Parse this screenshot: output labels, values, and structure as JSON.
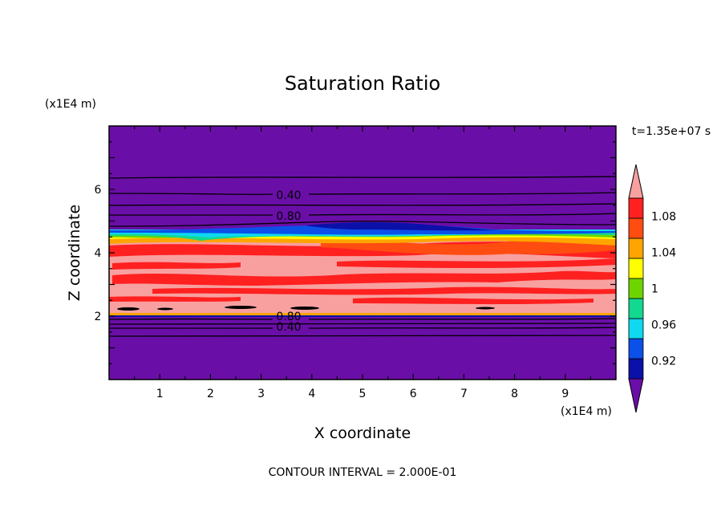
{
  "chart_data": {
    "type": "heatmap",
    "title": "Saturation Ratio",
    "xlabel": "X coordinate",
    "ylabel": "Z coordinate",
    "x_units": "(x1E4 m)",
    "y_units": "(x1E4 m)",
    "time_label": "t=1.35e+07 s",
    "footer": "CONTOUR INTERVAL = 2.000E-01",
    "xlim": [
      0,
      10
    ],
    "ylim": [
      0,
      8
    ],
    "x_ticks": [
      "1",
      "2",
      "3",
      "4",
      "5",
      "6",
      "7",
      "8",
      "9"
    ],
    "y_ticks": [
      "2",
      "4",
      "6"
    ],
    "colorbar": {
      "levels": [
        0.9,
        0.92,
        0.94,
        0.96,
        0.98,
        1.0,
        1.02,
        1.04,
        1.06,
        1.08,
        1.1
      ],
      "colors": [
        "#6a0ea8",
        "#0b10a8",
        "#0b50e8",
        "#10d8f0",
        "#12d890",
        "#6ed400",
        "#ffff00",
        "#ffa400",
        "#ff4c10",
        "#ff2020",
        "#f8a0a0"
      ],
      "tick_labels": [
        "0.92",
        "0.96",
        "1",
        "1.04",
        "1.08"
      ],
      "extend": "both"
    },
    "contour_labels": [
      "0.40",
      "0.80",
      "0.80",
      "0.40"
    ],
    "bands": [
      {
        "z0": 0.0,
        "z1": 2.0,
        "level": "below 0.92"
      },
      {
        "z0": 2.0,
        "z1": 4.55,
        "level": "above 1.10"
      },
      {
        "z0": 4.55,
        "z1": 4.7,
        "level": "transition 1.00-1.08"
      },
      {
        "z0": 4.7,
        "z1": 8.0,
        "level": "below 0.92"
      }
    ]
  }
}
